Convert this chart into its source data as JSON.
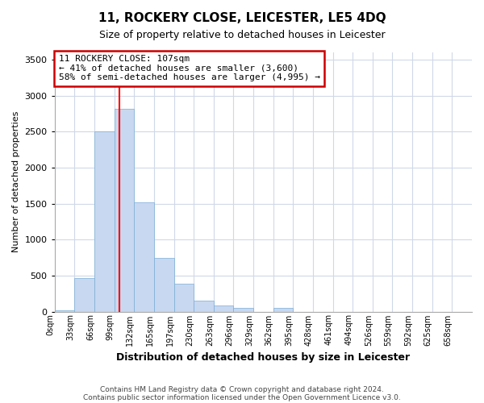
{
  "title": "11, ROCKERY CLOSE, LEICESTER, LE5 4DQ",
  "subtitle": "Size of property relative to detached houses in Leicester",
  "xlabel": "Distribution of detached houses by size in Leicester",
  "ylabel": "Number of detached properties",
  "footnote1": "Contains HM Land Registry data © Crown copyright and database right 2024.",
  "footnote2": "Contains public sector information licensed under the Open Government Licence v3.0.",
  "annotation_line1": "11 ROCKERY CLOSE: 107sqm",
  "annotation_line2": "← 41% of detached houses are smaller (3,600)",
  "annotation_line3": "58% of semi-detached houses are larger (4,995) →",
  "bin_labels": [
    "0sqm",
    "33sqm",
    "66sqm",
    "99sqm",
    "132sqm",
    "165sqm",
    "197sqm",
    "230sqm",
    "263sqm",
    "296sqm",
    "329sqm",
    "362sqm",
    "395sqm",
    "428sqm",
    "461sqm",
    "494sqm",
    "526sqm",
    "559sqm",
    "592sqm",
    "625sqm",
    "658sqm"
  ],
  "bar_values": [
    20,
    460,
    2500,
    2820,
    1520,
    740,
    390,
    155,
    80,
    55,
    0,
    55,
    0,
    0,
    0,
    0,
    0,
    0,
    0,
    0,
    0
  ],
  "bar_color": "#c8d8f0",
  "bar_edge_color": "#7aadd6",
  "red_line_bin": 3,
  "ylim": [
    0,
    3600
  ],
  "yticks": [
    0,
    500,
    1000,
    1500,
    2000,
    2500,
    3000,
    3500
  ],
  "bg_color": "#ffffff",
  "grid_color": "#d0d8e8",
  "annotation_box_color": "#ffffff",
  "annotation_box_edgecolor": "#cc0000"
}
